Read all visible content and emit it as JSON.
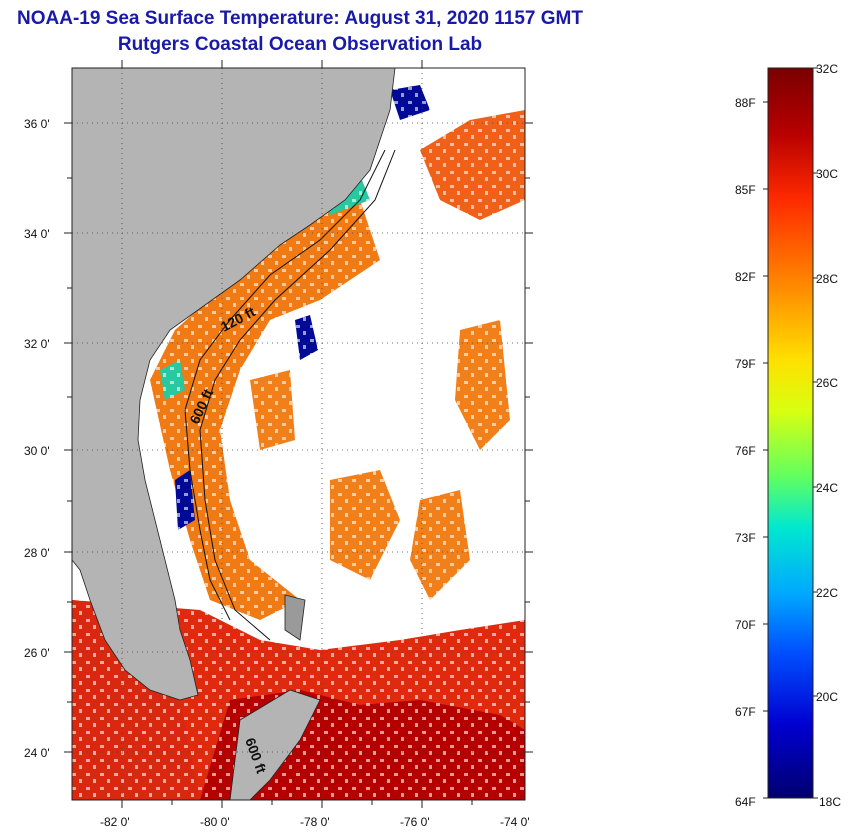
{
  "title": {
    "line1": "NOAA-19 Sea Surface Temperature:  August 31, 2020 1157 GMT",
    "line2": "Rutgers Coastal Ocean Observation Lab"
  },
  "map": {
    "lat_labels": [
      "36 0'",
      "34 0'",
      "32 0'",
      "30 0'",
      "28 0'",
      "26 0'",
      "24 0'"
    ],
    "lon_labels": [
      "-82 0'",
      "-80 0'",
      "-78 0'",
      "-76 0'",
      "-74 0'"
    ],
    "contour_labels": [
      "120 ft",
      "600 ft",
      "600 ft"
    ],
    "colors": {
      "land": "#b4b4b4",
      "cloud": "#ffffff",
      "warm": "#e03010",
      "orange": "#f07010",
      "cold": "#000090"
    }
  },
  "colorbar": {
    "celsius_labels": [
      "32C",
      "30C",
      "28C",
      "26C",
      "24C",
      "22C",
      "20C",
      "18C"
    ],
    "fahrenheit_labels": [
      "88F",
      "85F",
      "82F",
      "79F",
      "76F",
      "73F",
      "70F",
      "67F",
      "64F"
    ],
    "colors_top_to_bottom": [
      "#7a0000",
      "#c80000",
      "#ff3000",
      "#ff8000",
      "#ffd000",
      "#e0ff00",
      "#80ff40",
      "#00e0c0",
      "#00a0ff",
      "#0040ff",
      "#0000c0",
      "#000070"
    ]
  }
}
